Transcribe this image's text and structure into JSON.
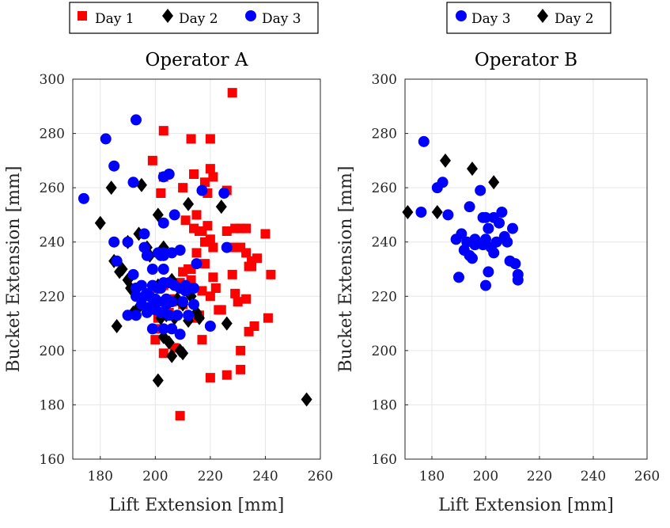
{
  "colors": {
    "day1": "#ff0000",
    "day2": "#000000",
    "day3": "#0000ff",
    "grid": "#e6e6e6",
    "axis": "#262626"
  },
  "chart_data": [
    {
      "type": "scatter",
      "title": "Operator A",
      "xlabel": "Lift Extension [mm]",
      "ylabel": "Bucket Extension [mm]",
      "xlim": [
        170,
        260
      ],
      "ylim": [
        160,
        300
      ],
      "xticks": [
        180,
        200,
        220,
        240,
        260
      ],
      "yticks": [
        160,
        180,
        200,
        220,
        240,
        260,
        280,
        300
      ],
      "grid": true,
      "legend": {
        "placement": "top-left, outside",
        "entries": [
          "Day 1",
          "Day 2",
          "Day 3"
        ]
      },
      "series": [
        {
          "name": "Day 1",
          "marker": "square",
          "color": "#ff0000",
          "x": [
            228,
            203,
            220,
            213,
            220,
            199,
            203,
            221,
            214,
            218,
            226,
            219,
            210,
            202,
            215,
            211,
            219,
            218,
            214,
            229,
            231,
            233,
            220,
            217,
            216,
            226,
            228,
            221,
            231,
            233,
            240,
            235,
            237,
            215,
            234,
            212,
            199,
            201,
            200,
            221,
            224,
            217,
            203,
            197,
            201,
            207,
            206,
            210,
            220,
            223,
            205,
            210,
            222,
            218,
            209,
            200,
            213,
            217,
            233,
            228,
            235,
            236,
            242,
            234,
            241,
            231,
            226,
            231,
            220,
            209,
            211,
            216,
            213,
            207,
            203,
            229,
            230,
            214
          ],
          "y": [
            295,
            281,
            278,
            278,
            267,
            270,
            264,
            264,
            265,
            262,
            259,
            258,
            260,
            258,
            250,
            248,
            246,
            240,
            245,
            245,
            245,
            245,
            241,
            244,
            244,
            244,
            238,
            238,
            238,
            236,
            243,
            233,
            234,
            236,
            231,
            230,
            223,
            212,
            208,
            227,
            215,
            222,
            224,
            216,
            218,
            219,
            218,
            217,
            220,
            215,
            214,
            229,
            223,
            232,
            225,
            204,
            226,
            204,
            219,
            228,
            231,
            209,
            228,
            207,
            212,
            200,
            191,
            193,
            190,
            176,
            223,
            213,
            230,
            201,
            199,
            221,
            218,
            212
          ]
        },
        {
          "name": "Day 2",
          "marker": "diamond",
          "color": "#000000",
          "x": [
            184,
            195,
            180,
            185,
            190,
            194,
            187,
            190,
            191,
            198,
            203,
            201,
            210,
            213,
            216,
            224,
            226,
            201,
            203,
            205,
            206,
            209,
            204,
            207,
            206,
            210,
            212,
            215,
            255,
            188,
            192,
            201,
            186,
            194,
            202,
            208,
            212,
            197
          ],
          "y": [
            260,
            261,
            247,
            233,
            240,
            243,
            229,
            226,
            223,
            235,
            238,
            250,
            217,
            220,
            212,
            253,
            210,
            189,
            205,
            203,
            198,
            200,
            213,
            212,
            226,
            199,
            254,
            214,
            182,
            230,
            214,
            224,
            209,
            216,
            212,
            219,
            211,
            238
          ]
        },
        {
          "name": "Day 3",
          "marker": "circle",
          "color": "#0000ff",
          "x": [
            193,
            182,
            185,
            174,
            192,
            205,
            203,
            217,
            225,
            226,
            201,
            203,
            203,
            196,
            203,
            207,
            190,
            185,
            196,
            186,
            197,
            202,
            206,
            209,
            215,
            199,
            203,
            207,
            211,
            192,
            193,
            195,
            199,
            201,
            202,
            203,
            205,
            209,
            211,
            214,
            196,
            198,
            200,
            204,
            206,
            210,
            214,
            220,
            190,
            193,
            197,
            202,
            205,
            208,
            212,
            199,
            203,
            206,
            209,
            193,
            195,
            198,
            200,
            201,
            204,
            197
          ],
          "y": [
            285,
            278,
            268,
            256,
            262,
            265,
            264,
            259,
            258,
            238,
            236,
            236,
            235,
            243,
            247,
            250,
            240,
            240,
            238,
            233,
            235,
            235,
            236,
            237,
            232,
            230,
            230,
            224,
            224,
            228,
            223,
            224,
            224,
            223,
            223,
            225,
            225,
            223,
            222,
            223,
            220,
            220,
            219,
            219,
            218,
            218,
            217,
            209,
            213,
            213,
            214,
            214,
            213,
            213,
            213,
            208,
            208,
            208,
            206,
            220,
            217,
            216,
            215,
            218,
            217,
            221
          ]
        }
      ]
    },
    {
      "type": "scatter",
      "title": "Operator B",
      "xlabel": "Lift Extension [mm]",
      "ylabel": "Bucket Extension [mm]",
      "xlim": [
        170,
        260
      ],
      "ylim": [
        160,
        300
      ],
      "xticks": [
        180,
        200,
        220,
        240,
        260
      ],
      "yticks": [
        160,
        180,
        200,
        220,
        240,
        260,
        280,
        300
      ],
      "grid": true,
      "legend": {
        "placement": "top-left, outside",
        "entries": [
          "Day 3",
          "Day 2"
        ]
      },
      "series": [
        {
          "name": "Day 3",
          "marker": "circle",
          "color": "#0000ff",
          "x": [
            177,
            184,
            182,
            176,
            186,
            189,
            191,
            193,
            194,
            196,
            198,
            199,
            200,
            201,
            203,
            205,
            206,
            207,
            208,
            192,
            194,
            196,
            199,
            202,
            203,
            204,
            209,
            211,
            212,
            210,
            212,
            190,
            195,
            200,
            201,
            200
          ],
          "y": [
            277,
            262,
            260,
            251,
            250,
            241,
            243,
            240,
            253,
            241,
            259,
            249,
            249,
            245,
            249,
            247,
            251,
            242,
            240,
            237,
            235,
            239,
            239,
            238,
            236,
            240,
            233,
            232,
            226,
            245,
            228,
            227,
            234,
            241,
            229,
            224
          ]
        },
        {
          "name": "Day 2",
          "marker": "diamond",
          "color": "#000000",
          "x": [
            185,
            195,
            203,
            171,
            182
          ],
          "y": [
            270,
            267,
            262,
            251,
            251
          ]
        }
      ]
    }
  ]
}
